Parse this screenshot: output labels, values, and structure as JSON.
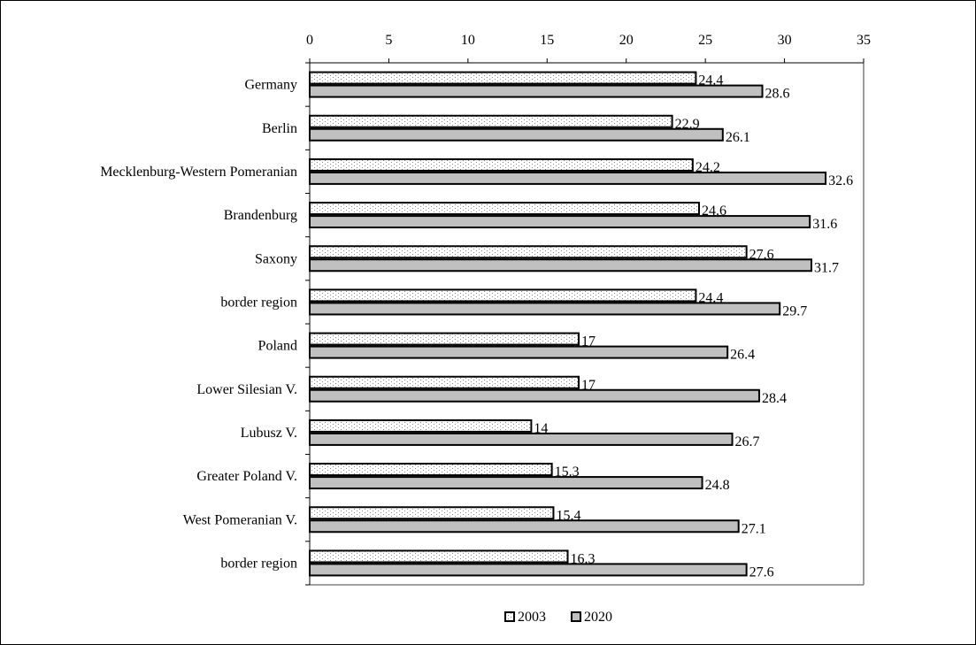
{
  "chart_data": {
    "type": "bar",
    "orientation": "horizontal",
    "categories": [
      "Germany",
      "Berlin",
      "Mecklenburg-Western Pomeranian",
      "Brandenburg",
      "Saxony",
      "border region",
      "Poland",
      "Lower Silesian V.",
      "Lubusz V.",
      "Greater Poland V.",
      "West Pomeranian V.",
      "border region"
    ],
    "series": [
      {
        "name": "2003",
        "values": [
          24.4,
          22.9,
          24.2,
          24.6,
          27.6,
          24.4,
          17,
          17,
          14,
          15.3,
          15.4,
          16.3
        ],
        "labels": [
          "24.4",
          "22.9",
          "24.2",
          "24.6",
          "27.6",
          "24.4",
          "17",
          "17",
          "14",
          "15.3",
          "15.4",
          "16.3"
        ],
        "fill": "dotted",
        "color": "#ffffff",
        "dot_color": "#888888"
      },
      {
        "name": "2020",
        "values": [
          28.6,
          26.1,
          32.6,
          31.6,
          31.7,
          29.7,
          26.4,
          28.4,
          26.7,
          24.8,
          27.1,
          27.6
        ],
        "labels": [
          "28.6",
          "26.1",
          "32.6",
          "31.6",
          "31.7",
          "29.7",
          "26.4",
          "28.4",
          "26.7",
          "24.8",
          "27.1",
          "27.6"
        ],
        "fill": "solid",
        "color": "#c0c0c0"
      }
    ],
    "xlim": [
      0,
      35
    ],
    "xticks": [
      "0",
      "5",
      "10",
      "15",
      "20",
      "25",
      "30",
      "35"
    ],
    "x_axis_position": "top",
    "grid": false,
    "legend_position": "bottom",
    "title": "",
    "xlabel": "",
    "ylabel": ""
  }
}
